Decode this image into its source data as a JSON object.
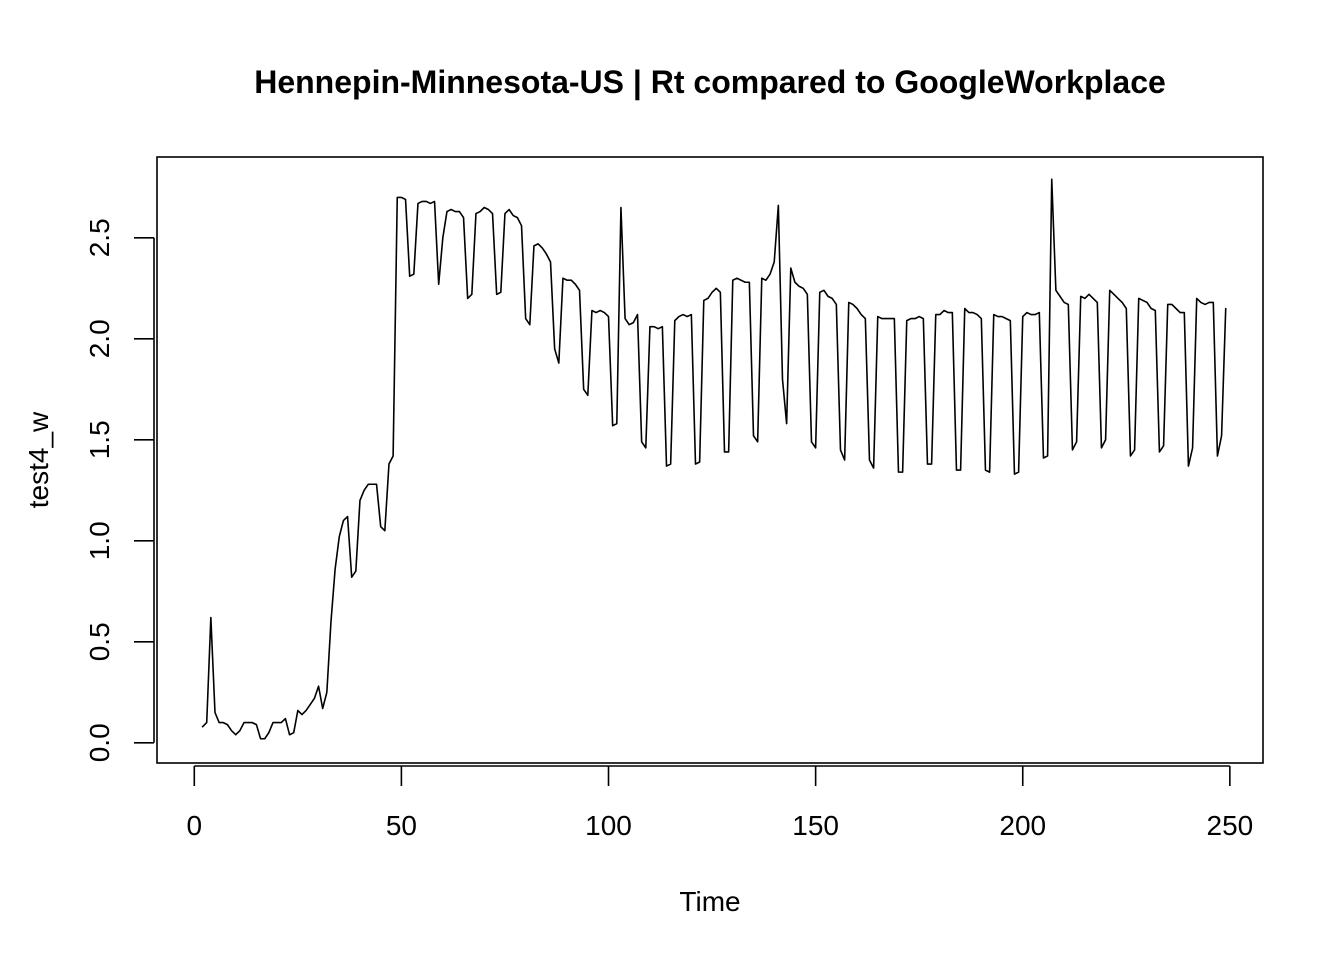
{
  "chart_data": {
    "type": "line",
    "title": "Hennepin-Minnesota-US | Rt compared to GoogleWorkplace",
    "xlabel": "Time",
    "ylabel": "test4_w",
    "xlim": [
      -9,
      258
    ],
    "ylim": [
      -0.1,
      2.9
    ],
    "x_ticks": [
      0,
      50,
      100,
      150,
      200,
      250
    ],
    "y_ticks": [
      0.0,
      0.5,
      1.0,
      1.5,
      2.0,
      2.5
    ],
    "x_tick_labels": [
      "0",
      "50",
      "100",
      "150",
      "200",
      "250"
    ],
    "y_tick_labels": [
      "0.0",
      "0.5",
      "1.0",
      "1.5",
      "2.0",
      "2.5"
    ],
    "grid": false,
    "series": [
      {
        "x_start": 2,
        "x_step": 1,
        "values": [
          0.08,
          0.1,
          0.62,
          0.15,
          0.1,
          0.1,
          0.09,
          0.06,
          0.04,
          0.06,
          0.1,
          0.1,
          0.1,
          0.09,
          0.02,
          0.02,
          0.05,
          0.1,
          0.1,
          0.1,
          0.12,
          0.04,
          0.05,
          0.16,
          0.14,
          0.16,
          0.19,
          0.22,
          0.28,
          0.17,
          0.25,
          0.6,
          0.86,
          1.02,
          1.1,
          1.12,
          0.82,
          0.85,
          1.2,
          1.25,
          1.28,
          1.28,
          1.28,
          1.07,
          1.05,
          1.38,
          1.42,
          2.7,
          2.7,
          2.69,
          2.31,
          2.32,
          2.67,
          2.68,
          2.68,
          2.67,
          2.68,
          2.27,
          2.5,
          2.63,
          2.64,
          2.63,
          2.63,
          2.6,
          2.2,
          2.22,
          2.62,
          2.63,
          2.65,
          2.64,
          2.62,
          2.22,
          2.23,
          2.62,
          2.64,
          2.61,
          2.6,
          2.56,
          2.1,
          2.07,
          2.46,
          2.47,
          2.45,
          2.42,
          2.38,
          1.95,
          1.88,
          2.3,
          2.29,
          2.29,
          2.27,
          2.24,
          1.75,
          1.72,
          2.14,
          2.13,
          2.14,
          2.13,
          2.11,
          1.57,
          1.58,
          2.65,
          2.1,
          2.07,
          2.08,
          2.12,
          1.49,
          1.46,
          2.06,
          2.06,
          2.05,
          2.06,
          1.37,
          1.38,
          2.09,
          2.11,
          2.12,
          2.11,
          2.12,
          1.38,
          1.39,
          2.19,
          2.2,
          2.23,
          2.25,
          2.23,
          1.44,
          1.44,
          2.29,
          2.3,
          2.29,
          2.28,
          2.28,
          1.52,
          1.49,
          2.3,
          2.29,
          2.32,
          2.38,
          2.66,
          1.8,
          1.58,
          2.35,
          2.28,
          2.26,
          2.25,
          2.22,
          1.49,
          1.46,
          2.23,
          2.24,
          2.21,
          2.2,
          2.17,
          1.45,
          1.4,
          2.18,
          2.17,
          2.15,
          2.12,
          2.1,
          1.4,
          1.36,
          2.11,
          2.1,
          2.1,
          2.1,
          2.1,
          1.34,
          1.34,
          2.09,
          2.1,
          2.1,
          2.11,
          2.1,
          1.38,
          1.38,
          2.12,
          2.12,
          2.14,
          2.13,
          2.13,
          1.35,
          1.35,
          2.15,
          2.13,
          2.13,
          2.12,
          2.1,
          1.35,
          1.34,
          2.12,
          2.11,
          2.11,
          2.1,
          2.09,
          1.33,
          1.34,
          2.11,
          2.13,
          2.12,
          2.12,
          2.13,
          1.41,
          1.42,
          2.79,
          2.24,
          2.21,
          2.18,
          2.17,
          1.45,
          1.49,
          2.21,
          2.2,
          2.22,
          2.2,
          2.18,
          1.46,
          1.5,
          2.24,
          2.22,
          2.2,
          2.18,
          2.15,
          1.42,
          1.45,
          2.2,
          2.19,
          2.18,
          2.15,
          2.14,
          1.44,
          1.47,
          2.17,
          2.17,
          2.15,
          2.13,
          2.13,
          1.37,
          1.46,
          2.2,
          2.18,
          2.17,
          2.18,
          2.18,
          1.42,
          1.52,
          2.15
        ]
      }
    ]
  }
}
